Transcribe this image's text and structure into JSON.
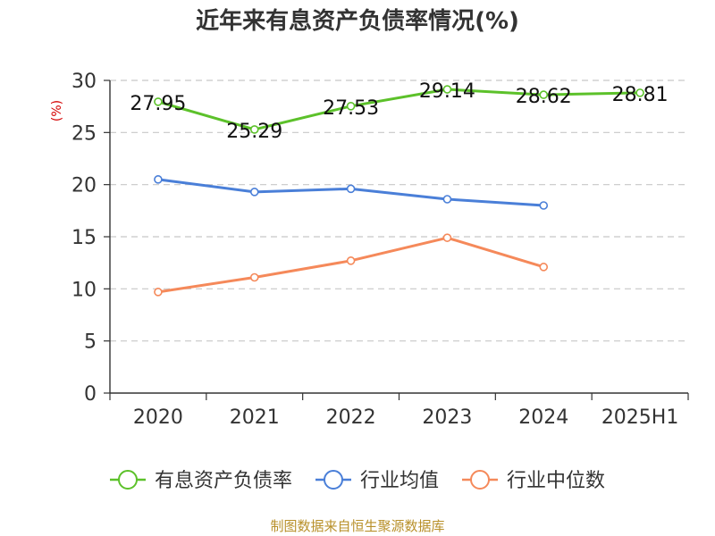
{
  "chart_data": {
    "type": "line",
    "title": "近年来有息资产负债率情况(%)",
    "ylabel": "(%)",
    "xlabel": "",
    "categories": [
      "2020",
      "2021",
      "2022",
      "2023",
      "2024",
      "2025H1"
    ],
    "ylim": [
      0,
      30
    ],
    "yticks": [
      "0",
      "5",
      "10",
      "15",
      "20",
      "25",
      "30"
    ],
    "grid": "horizontal-dashed",
    "legend_position": "bottom",
    "series": [
      {
        "name": "有息资产负债率",
        "color": "#5cc12a",
        "values": [
          27.95,
          25.29,
          27.53,
          29.14,
          28.62,
          28.81
        ],
        "labels": [
          "27.95",
          "25.29",
          "27.53",
          "29.14",
          "28.62",
          "28.81"
        ]
      },
      {
        "name": "行业均值",
        "color": "#4a7fd8",
        "values": [
          20.5,
          19.3,
          19.6,
          18.6,
          18.0,
          null
        ],
        "labels": []
      },
      {
        "name": "行业中位数",
        "color": "#f5895a",
        "values": [
          9.7,
          11.1,
          12.7,
          14.9,
          12.1,
          null
        ],
        "labels": []
      }
    ],
    "source": "制图数据来自恒生聚源数据库"
  }
}
